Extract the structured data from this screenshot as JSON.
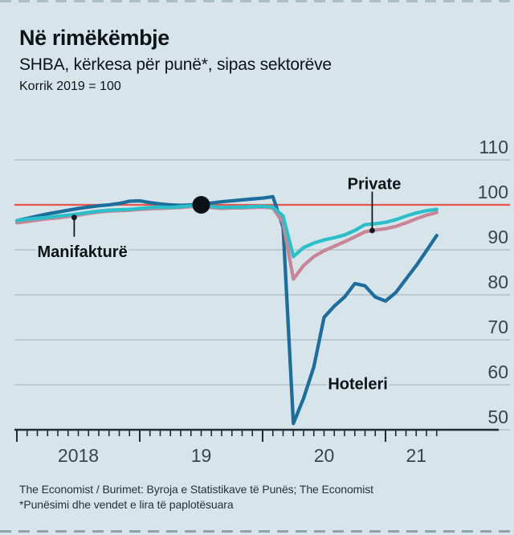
{
  "header": {
    "title": "Në rimëkëmbje",
    "subtitle": "SHBA, kërkesa për punë*, sipas sektorëve",
    "index_note": "Korrik 2019 = 100"
  },
  "footer": {
    "source": "The Economist / Burimet: Byroja e Statistikave të Punës; The Economist",
    "footnote": "*Punësimi dhe vendet e lira të paplotësuara"
  },
  "chart_data": {
    "type": "line",
    "title": "SHBA, kërkesa për punë*, sipas sektorëve",
    "index_note": "Korrik 2019 = 100",
    "x_unit": "month",
    "x_start": "2018-01",
    "x_end": "2021-06",
    "months_total": 42,
    "ylim": [
      50,
      110
    ],
    "y_ticks": [
      110,
      100,
      90,
      80,
      70,
      60,
      50
    ],
    "grid": true,
    "legend_position": "inline-annotations",
    "x_ticks": [
      {
        "label": "2018",
        "mid_month": 6,
        "major_tick_month": 0
      },
      {
        "label": "19",
        "mid_month": 18,
        "major_tick_month": 12
      },
      {
        "label": "20",
        "mid_month": 30,
        "major_tick_month": 24
      },
      {
        "label": "21",
        "mid_month": 39,
        "major_tick_month": 36
      }
    ],
    "reference_line": {
      "value": 100,
      "color": "#e8544a"
    },
    "marker": {
      "name": "korrik-2019-dot",
      "month": 18,
      "value": 100,
      "color": "#0c1116"
    },
    "colors": {
      "background": "#d7e5ea",
      "grid": "#a9babf",
      "axis": "#1f2a33",
      "text": "#0d1317"
    },
    "series": [
      {
        "id": "hoteleri",
        "name": "Hoteleri",
        "color": "#1c6e9d",
        "values": [
          96.5,
          97.0,
          97.5,
          98.0,
          98.4,
          98.8,
          99.2,
          99.5,
          99.8,
          100.0,
          100.3,
          100.8,
          100.9,
          100.5,
          100.2,
          100.0,
          99.9,
          100.0,
          100.0,
          100.4,
          100.7,
          100.9,
          101.1,
          101.3,
          101.5,
          101.8,
          95.0,
          51.4,
          57.0,
          64.0,
          75.0,
          77.5,
          79.5,
          82.5,
          82.0,
          79.5,
          78.6,
          80.5,
          83.5,
          86.5,
          89.8,
          93.2
        ]
      },
      {
        "id": "private",
        "name": "Private",
        "color": "#c98598",
        "values": [
          96.0,
          96.3,
          96.6,
          96.9,
          97.1,
          97.4,
          97.7,
          98.1,
          98.4,
          98.6,
          98.7,
          98.8,
          99.0,
          99.1,
          99.2,
          99.3,
          99.4,
          99.6,
          99.8,
          99.4,
          99.2,
          99.3,
          99.3,
          99.4,
          99.5,
          99.3,
          96.0,
          83.5,
          86.5,
          88.5,
          89.8,
          90.8,
          91.8,
          92.9,
          94.0,
          94.4,
          94.7,
          95.2,
          96.0,
          96.9,
          97.7,
          98.3
        ]
      },
      {
        "id": "manifakture",
        "name": "Manifakturë",
        "color": "#2bc0c9",
        "values": [
          96.5,
          96.8,
          97.0,
          97.2,
          97.5,
          97.7,
          98.0,
          98.3,
          98.6,
          98.8,
          98.9,
          99.0,
          99.2,
          99.4,
          99.5,
          99.4,
          99.6,
          99.8,
          100.0,
          99.6,
          99.4,
          99.5,
          99.5,
          99.6,
          99.7,
          99.5,
          97.5,
          88.5,
          90.5,
          91.5,
          92.2,
          92.7,
          93.3,
          94.3,
          95.6,
          95.8,
          96.1,
          96.7,
          97.5,
          98.2,
          98.7,
          99.0
        ]
      }
    ],
    "annotations": [
      {
        "id": "manifakture",
        "text": "Manifakturë",
        "label_month": 6.4,
        "label_value": 89.6,
        "pointer": {
          "month": 5.6,
          "from_value": 97.2,
          "to_value": 92.9,
          "dot_at": "start"
        }
      },
      {
        "id": "private",
        "text": "Private",
        "label_month": 34.9,
        "label_value": 104.7,
        "pointer": {
          "month": 34.7,
          "from_value": 103.0,
          "to_value": 94.3,
          "dot_at": "end"
        }
      },
      {
        "id": "hoteleri",
        "text": "Hoteleri",
        "label_month": 33.3,
        "label_value": 60.3,
        "pointer": null
      }
    ]
  }
}
